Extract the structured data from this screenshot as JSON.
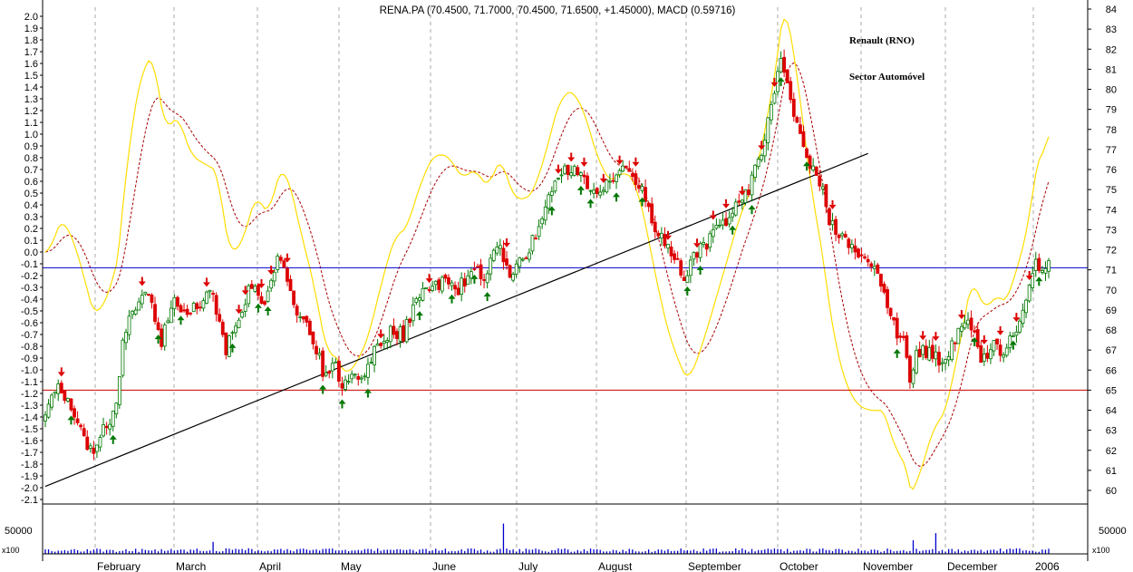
{
  "chart_data": {
    "type": "candlestick",
    "title": "RENA.PA (70.4500, 71.7000, 70.4500, 71.6500, +1.45000), MACD (0.59716)",
    "annotations": [
      "Renault (RNO)",
      "Sector Automóvel"
    ],
    "months": [
      "February",
      "March",
      "April",
      "May",
      "June",
      "July",
      "August",
      "September",
      "October",
      "November",
      "December",
      "2006"
    ],
    "y_left": {
      "range": [
        -2.1,
        2.0
      ],
      "ticks": [
        "2.0",
        "1.9",
        "1.8",
        "1.7",
        "1.6",
        "1.5",
        "1.4",
        "1.3",
        "1.2",
        "1.1",
        "1.0",
        "0.9",
        "0.8",
        "0.7",
        "0.6",
        "0.5",
        "0.4",
        "0.3",
        "0.2",
        "0.1",
        "0.0",
        "-0.1",
        "-0.2",
        "-0.3",
        "-0.4",
        "-0.5",
        "-0.6",
        "-0.7",
        "-0.8",
        "-0.9",
        "-1.0",
        "-1.1",
        "-1.2",
        "-1.3",
        "-1.4",
        "-1.5",
        "-1.6",
        "-1.7",
        "-1.8",
        "-1.9",
        "-2.0",
        "-2.1"
      ]
    },
    "y_right": {
      "range": [
        60,
        84
      ],
      "ticks": [
        "84",
        "83",
        "82",
        "81",
        "80",
        "79",
        "78",
        "77",
        "76",
        "75",
        "74",
        "73",
        "72",
        "71",
        "70",
        "69",
        "68",
        "67",
        "66",
        "65",
        "64",
        "63",
        "62",
        "61",
        "60"
      ]
    },
    "volume": {
      "left_label": "50000",
      "right_label": "50000",
      "left_unit": "x100",
      "right_unit": "x100",
      "max": 80000
    },
    "reference_lines": [
      {
        "name": "blue-horizontal",
        "price": 71.1,
        "color": "#0000cc"
      },
      {
        "name": "red-horizontal",
        "price": 65.0,
        "color": "#cc0000"
      }
    ],
    "trendline": {
      "start": [
        0,
        60.2
      ],
      "end": [
        255,
        76.8
      ]
    },
    "anchors": [
      [
        0,
        64.0
      ],
      [
        4,
        65.3
      ],
      [
        10,
        63.3
      ],
      [
        14,
        61.9
      ],
      [
        19,
        63.3
      ],
      [
        22,
        64.3
      ],
      [
        24,
        67.5
      ],
      [
        28,
        69.2
      ],
      [
        32,
        69.8
      ],
      [
        36,
        67.5
      ],
      [
        40,
        69.7
      ],
      [
        44,
        68.7
      ],
      [
        48,
        69.4
      ],
      [
        52,
        69.7
      ],
      [
        56,
        67.0
      ],
      [
        60,
        68.7
      ],
      [
        64,
        70.3
      ],
      [
        68,
        69.2
      ],
      [
        72,
        71.5
      ],
      [
        74,
        70.8
      ],
      [
        78,
        69.0
      ],
      [
        82,
        68.0
      ],
      [
        86,
        66.0
      ],
      [
        90,
        66.2
      ],
      [
        92,
        65.3
      ],
      [
        95,
        65.6
      ],
      [
        99,
        66.0
      ],
      [
        103,
        67.2
      ],
      [
        107,
        68.0
      ],
      [
        111,
        67.8
      ],
      [
        115,
        69.4
      ],
      [
        119,
        70.2
      ],
      [
        124,
        70.3
      ],
      [
        128,
        70.0
      ],
      [
        132,
        71.0
      ],
      [
        136,
        70.6
      ],
      [
        140,
        72.3
      ],
      [
        144,
        70.8
      ],
      [
        150,
        72.0
      ],
      [
        154,
        73.7
      ],
      [
        158,
        75.5
      ],
      [
        162,
        76.0
      ],
      [
        166,
        75.7
      ],
      [
        170,
        75.0
      ],
      [
        174,
        75.2
      ],
      [
        178,
        76.3
      ],
      [
        181,
        76.2
      ],
      [
        184,
        75.3
      ],
      [
        188,
        73.5
      ],
      [
        192,
        72.2
      ],
      [
        196,
        71.3
      ],
      [
        198,
        70.8
      ],
      [
        202,
        71.8
      ],
      [
        206,
        72.5
      ],
      [
        210,
        73.3
      ],
      [
        214,
        74.3
      ],
      [
        218,
        75.0
      ],
      [
        222,
        77.0
      ],
      [
        226,
        79.7
      ],
      [
        228,
        81.7
      ],
      [
        232,
        78.5
      ],
      [
        236,
        76.5
      ],
      [
        240,
        75.5
      ],
      [
        243,
        73.5
      ],
      [
        247,
        72.5
      ],
      [
        251,
        71.8
      ],
      [
        255,
        71.2
      ],
      [
        259,
        70.5
      ],
      [
        262,
        68.5
      ],
      [
        266,
        67.3
      ],
      [
        268,
        65.5
      ],
      [
        270,
        66.8
      ],
      [
        274,
        67.0
      ],
      [
        278,
        66.2
      ],
      [
        282,
        67.5
      ],
      [
        286,
        68.8
      ],
      [
        290,
        66.5
      ],
      [
        294,
        67.2
      ],
      [
        297,
        66.6
      ],
      [
        300,
        67.8
      ],
      [
        303,
        68.7
      ],
      [
        307,
        71.3
      ],
      [
        309,
        70.8
      ],
      [
        311,
        71.6
      ]
    ],
    "n_days": 312,
    "signals": {
      "sell": [
        5,
        30,
        50,
        60,
        62,
        67,
        70,
        75,
        104,
        119,
        143,
        159,
        163,
        167,
        173,
        178,
        183,
        193,
        202,
        207,
        211,
        216,
        222,
        226,
        244,
        272,
        276,
        284,
        291,
        296,
        301,
        305
      ],
      "buy": [
        8,
        21,
        35,
        42,
        58,
        66,
        69,
        86,
        92,
        100,
        116,
        126,
        133,
        137,
        157,
        166,
        169,
        177,
        185,
        199,
        203,
        213,
        219,
        228,
        236,
        264,
        288,
        300,
        308
      ]
    }
  }
}
